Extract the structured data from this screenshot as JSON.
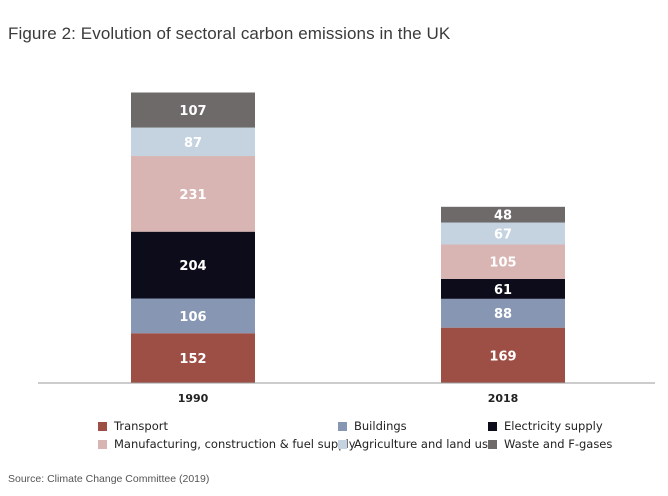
{
  "title": "Figure 2: Evolution of sectoral carbon emissions in the UK",
  "source": "Source: Climate Change Committee (2019)",
  "chart_data": {
    "type": "bar",
    "stacked": true,
    "categories": [
      "1990",
      "2018"
    ],
    "series": [
      {
        "name": "Transport",
        "values": [
          152,
          169
        ],
        "color": "#9e4f45",
        "label_color": "#ffffff"
      },
      {
        "name": "Buildings",
        "values": [
          106,
          88
        ],
        "color": "#8797b3",
        "label_color": "#ffffff"
      },
      {
        "name": "Electricity supply",
        "values": [
          204,
          61
        ],
        "color": "#0c0c1a",
        "label_color": "#ffffff"
      },
      {
        "name": "Manufacturing, construction & fuel supply",
        "values": [
          231,
          105
        ],
        "color": "#d8b4b2",
        "label_color": "#ffffff"
      },
      {
        "name": "Agriculture and land use",
        "values": [
          87,
          67
        ],
        "color": "#c4d3df",
        "label_color": "#ffffff"
      },
      {
        "name": "Waste and F-gases",
        "values": [
          107,
          48
        ],
        "color": "#6e6a6a",
        "label_color": "#ffffff"
      }
    ],
    "legend": {
      "position": "bottom",
      "order": [
        "Transport",
        "Buildings",
        "Electricity supply",
        "Manufacturing, construction & fuel supply",
        "Agriculture and land use",
        "Waste and F-gases"
      ]
    },
    "grid": false,
    "xlabel": "",
    "ylabel": ""
  }
}
